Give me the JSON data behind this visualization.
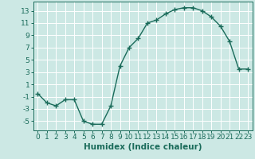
{
  "x": [
    0,
    1,
    2,
    3,
    4,
    5,
    6,
    7,
    8,
    9,
    10,
    11,
    12,
    13,
    14,
    15,
    16,
    17,
    18,
    19,
    20,
    21,
    22,
    23
  ],
  "y": [
    -0.5,
    -2,
    -2.5,
    -1.5,
    -1.5,
    -5,
    -5.5,
    -5.5,
    -2.5,
    4,
    7,
    8.5,
    11,
    11.5,
    12.5,
    13.2,
    13.5,
    13.5,
    13,
    12,
    10.5,
    8,
    3.5,
    3.5
  ],
  "line_color": "#1a6b5a",
  "marker": "+",
  "marker_size": 4,
  "background_color": "#cce8e4",
  "grid_color": "#ffffff",
  "xlabel": "Humidex (Indice chaleur)",
  "xlim": [
    -0.5,
    23.5
  ],
  "ylim": [
    -6.5,
    14.5
  ],
  "yticks": [
    -5,
    -3,
    -1,
    1,
    3,
    5,
    7,
    9,
    11,
    13
  ],
  "xticks": [
    0,
    1,
    2,
    3,
    4,
    5,
    6,
    7,
    8,
    9,
    10,
    11,
    12,
    13,
    14,
    15,
    16,
    17,
    18,
    19,
    20,
    21,
    22,
    23
  ],
  "xlabel_fontsize": 7.5,
  "tick_fontsize": 6.5,
  "linewidth": 1.0
}
